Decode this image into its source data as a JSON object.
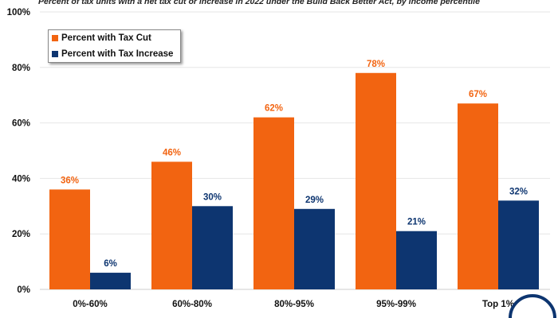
{
  "chart_data": {
    "type": "bar",
    "title": "",
    "subtitle": "Percent of tax units with a net tax cut or increase in 2022 under the Build Back Better Act, by income percentile",
    "categories": [
      "0%-60%",
      "60%-80%",
      "80%-95%",
      "95%-99%",
      "Top 1%"
    ],
    "series": [
      {
        "name": "Percent with Tax Cut",
        "values": [
          36,
          46,
          62,
          78,
          67
        ],
        "labels": [
          "36%",
          "46%",
          "62%",
          "78%",
          "67%"
        ],
        "color": "#f26411"
      },
      {
        "name": "Percent with Tax Increase",
        "values": [
          6,
          30,
          29,
          21,
          32
        ],
        "labels": [
          "6%",
          "30%",
          "29%",
          "21%",
          "32%"
        ],
        "color": "#0d3570"
      }
    ],
    "ylim": [
      0,
      100
    ],
    "yticks": [
      0,
      20,
      40,
      60,
      80,
      100
    ],
    "ytick_labels": [
      "0%",
      "20%",
      "40%",
      "60%",
      "80%",
      "100%"
    ],
    "grid": true,
    "legend": "top-left",
    "xlabel": "",
    "ylabel": ""
  }
}
